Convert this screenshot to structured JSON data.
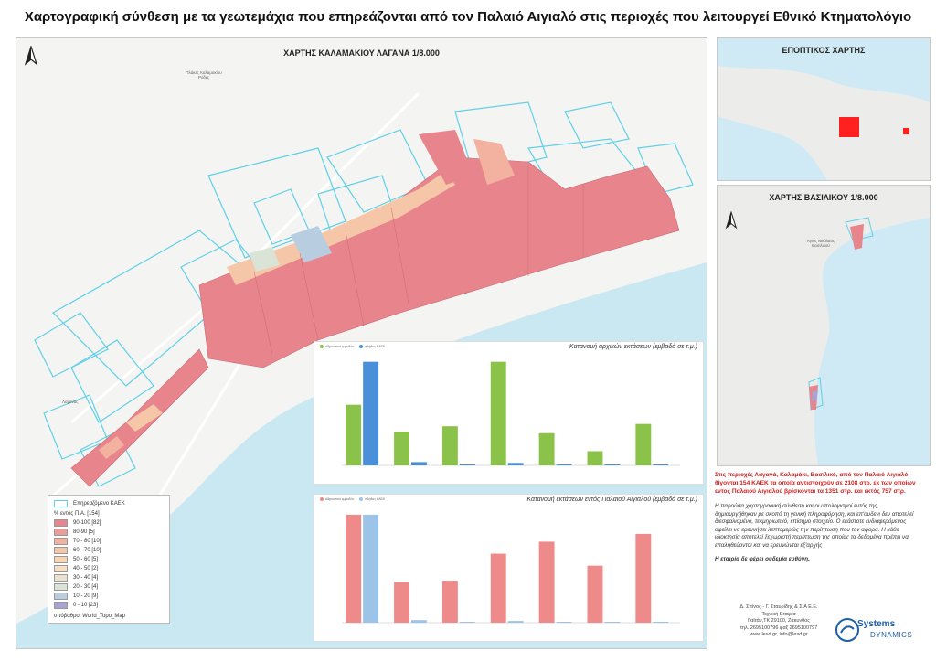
{
  "title": "Χαρτογραφική σύνθεση με τα γεωτεμάχια που επηρεάζονται από τον Παλαιό Αιγιαλό στις περιοχές που λειτουργεί Εθνικό Κτηματολόγιο",
  "main_map": {
    "title": "ΧΑΡΤΗΣ ΚΑΛΑΜΑΚΙΟΥ ΛΑΓΑΝΑ 1/8.000",
    "place_labels": [
      "Πλάκες Καλαμακίου Ρόδες",
      "Λαγανάς"
    ]
  },
  "overview_map": {
    "title": "ΕΠΟΠΤΙΚΟΣ ΧΑΡΤΗΣ"
  },
  "inset_map": {
    "title": "ΧΑΡΤΗΣ ΒΑΣΙΛΙΚΟΥ 1/8.000",
    "place_label": "Αγιος Νικόλαος Βασιλικού"
  },
  "legend": {
    "affected_label": "Επηρεαζόμενο ΚΑΕΚ",
    "header": "% εντός Π.Α. [154]",
    "items": [
      {
        "label": "90-100 [82]",
        "color": "#e8858c"
      },
      {
        "label": "80-90 [5]",
        "color": "#ed9d98"
      },
      {
        "label": "70 - 80 [10]",
        "color": "#f2b29f"
      },
      {
        "label": "60 - 70 [10]",
        "color": "#f6c6a8"
      },
      {
        "label": "50 - 60 [5]",
        "color": "#f8d4b0"
      },
      {
        "label": "40 - 50 [2]",
        "color": "#f6dfc0"
      },
      {
        "label": "30 - 40 [4]",
        "color": "#ebe1cf"
      },
      {
        "label": "20 - 30 [4]",
        "color": "#d9e3d6"
      },
      {
        "label": "10 - 20 [9]",
        "color": "#b8cde0"
      },
      {
        "label": "0 - 10 [23]",
        "color": "#a7a3d2"
      }
    ],
    "basemap": "υπόβαθρο: World_Topo_Map"
  },
  "charts": [
    {
      "title": "Κατανομή αρχικών εκτάσεων (εμβαδά σε τ.μ.)",
      "legend": [
        "Αθροιστικό εμβαδόν",
        "πλήθος ΚΑΕΚ"
      ]
    },
    {
      "title": "Κατανομή εκτάσεων εντός Παλαιού Αιγιαλού (εμβαδά σε τ.μ.)",
      "legend": [
        "Αθροιστικό εμβαδόν",
        "πλήθος ΚΑΕΚ"
      ]
    }
  ],
  "chart_data": [
    {
      "type": "bar",
      "title": "Κατανομή αρχικών εκτάσεων (εμβαδά σε τ.μ.)",
      "series": [
        {
          "name": "Αθροιστικό εμβαδόν",
          "color": "#8bc34a",
          "values": [
            158000,
            88000,
            102000,
            270000,
            84000,
            37000,
            108000
          ]
        },
        {
          "name": "πλήθος ΚΑΕΚ",
          "color": "#4a90d9",
          "values": [
            126,
            4,
            1,
            3,
            0,
            0,
            0
          ]
        }
      ]
    },
    {
      "type": "bar",
      "title": "Κατανομή εκτάσεων εντός Παλαιού Αιγιαλού (εμβαδά σε τ.μ.)",
      "series": [
        {
          "name": "Αθροιστικό εμβαδόν",
          "color": "#ef8a8a",
          "values": [
            180000,
            68000,
            70000,
            115000,
            135000,
            95000,
            148000
          ]
        },
        {
          "name": "πλήθος ΚΑΕΚ",
          "color": "#9cc4e8",
          "values": [
            125,
            3,
            1,
            2,
            1,
            0,
            0
          ]
        }
      ]
    }
  ],
  "info": {
    "highlight": "Στις περιοχές Λαγανά, Καλαμάκι, Βασιλικό, από τον Παλαιό Αιγιαλό θίγονται 154 ΚΑΕΚ τα οποία αντιστοιχούν σε 2108 στρ. εκ των οποίων εντος Παλαιού Αιγιαλού βρίσκονται τα 1351 στρ. και εκτός 757 στρ.",
    "disclaimer": "Η παρούσα χαρτογραφική σύνθεση και οι υπολογισμοί εντός της, δημιουργήθηκαν με σκοπό τη γενική πληροφόρηση, και επ'ουδενι δεν αποτελεί διεσφαλισμένο, τεκμηριωτικό, επίσημο στοιχείο. Ο εκάστοτε ενδιαφερόμενος οφείλει να ερευνήσει λεπτομερώς την περίπτωση που τον αφορά. Η κάθε ιδιοκτησία αποτελεί ξεχωριστή περίπτωση της οποίας τα δεδομένα πρέπει να επαληθεύονται και να ερευνώνται εξ'αρχής",
    "liability": "Η εταιρία δε φέρει ουδεμία ευθύνη."
  },
  "company": {
    "name": "Δ. Σπίνος - Γ. Σταυρίδης & ΣΙΑ Ε.Ε.",
    "type": "Τεχνική Εταιρία",
    "address": "Γαϊτάν,ΤΚ 29100, Ζάκυνθος",
    "phone": "τηλ. 2695100796 φαξ 2695100797",
    "web": "www.lesd.gr, info@lesd.gr",
    "logo_line1": "Systems",
    "logo_line2": "DYNAMICS"
  }
}
